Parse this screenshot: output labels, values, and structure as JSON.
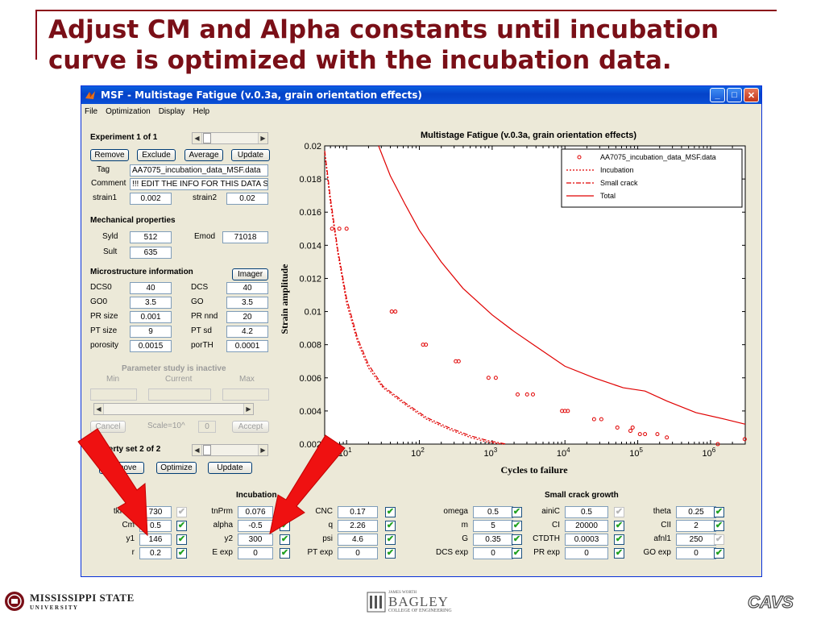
{
  "slide": {
    "title_line1": "Adjust CM and Alpha constants until incubation",
    "title_line2": "curve is optimized with the incubation data."
  },
  "window": {
    "title": "MSF - Multistage Fatigue (v.0.3a, grain orientation effects)",
    "menu": [
      "File",
      "Optimization",
      "Display",
      "Help"
    ]
  },
  "experiment": {
    "header": "Experiment 1 of 1",
    "buttons": [
      "Remove",
      "Exclude",
      "Average",
      "Update"
    ],
    "tag_label": "Tag",
    "tag_value": "AA7075_incubation_data_MSF.data",
    "comment_label": "Comment",
    "comment_value": "!!! EDIT THE INFO FOR THIS DATA SET",
    "strain1_label": "strain1",
    "strain1_value": "0.002",
    "strain2_label": "strain2",
    "strain2_value": "0.02"
  },
  "mechanical": {
    "header": "Mechanical properties",
    "syld_label": "Syld",
    "syld_value": "512",
    "emod_label": "Emod",
    "emod_value": "71018",
    "sult_label": "Sult",
    "sult_value": "635"
  },
  "microstructure": {
    "header": "Microstructure information",
    "imager_button": "Imager",
    "rows": [
      {
        "l1": "DCS0",
        "v1": "40",
        "l2": "DCS",
        "v2": "40"
      },
      {
        "l1": "GO0",
        "v1": "3.5",
        "l2": "GO",
        "v2": "3.5"
      },
      {
        "l1": "PR size",
        "v1": "0.001",
        "l2": "PR nnd",
        "v2": "20"
      },
      {
        "l1": "PT size",
        "v1": "9",
        "l2": "PT sd",
        "v2": "4.2"
      },
      {
        "l1": "porosity",
        "v1": "0.0015",
        "l2": "porTH",
        "v2": "0.0001"
      }
    ]
  },
  "parameter_study": {
    "status": "Parameter study is inactive",
    "min_label": "Min",
    "current_label": "Current",
    "max_label": "Max",
    "cancel": "Cancel",
    "scale_label": "Scale=10^",
    "scale_value": "0",
    "accept": "Accept"
  },
  "property_set": {
    "header": "Property set 2 of 2",
    "buttons": [
      "Remove",
      "Optimize",
      "Update"
    ]
  },
  "params": {
    "incubation_header": "Incubation",
    "small_crack_header": "Small crack growth",
    "rows": [
      [
        {
          "label": "tkPrm",
          "value": "730",
          "checked": false
        },
        {
          "label": "tnPrm",
          "value": "0.076",
          "checked": true
        },
        {
          "label": "CNC",
          "value": "0.17",
          "checked": true
        },
        {
          "label": "omega",
          "value": "0.5",
          "checked": true
        },
        {
          "label": "ainiC",
          "value": "0.5",
          "checked": false
        },
        {
          "label": "theta",
          "value": "0.25",
          "checked": true
        }
      ],
      [
        {
          "label": "Cm",
          "value": "0.5",
          "checked": true
        },
        {
          "label": "alpha",
          "value": "-0.5",
          "checked": true
        },
        {
          "label": "q",
          "value": "2.26",
          "checked": true
        },
        {
          "label": "m",
          "value": "5",
          "checked": true
        },
        {
          "label": "CI",
          "value": "20000",
          "checked": true
        },
        {
          "label": "CII",
          "value": "2",
          "checked": true
        }
      ],
      [
        {
          "label": "y1",
          "value": "146",
          "checked": true
        },
        {
          "label": "y2",
          "value": "300",
          "checked": true
        },
        {
          "label": "psi",
          "value": "4.6",
          "checked": true
        },
        {
          "label": "G",
          "value": "0.35",
          "checked": true
        },
        {
          "label": "CTDTH",
          "value": "0.0003",
          "checked": true
        },
        {
          "label": "afnl1",
          "value": "250",
          "checked": false
        }
      ],
      [
        {
          "label": "r",
          "value": "0.2",
          "checked": true
        },
        {
          "label": "E exp",
          "value": "0",
          "checked": true
        },
        {
          "label": "PT exp",
          "value": "0",
          "checked": true
        },
        {
          "label": "DCS exp",
          "value": "0",
          "checked": true
        },
        {
          "label": "PR exp",
          "value": "0",
          "checked": true
        },
        {
          "label": "GO exp",
          "value": "0",
          "checked": true
        }
      ]
    ]
  },
  "plot": {
    "title": "Multistage Fatigue (v.0.3a, grain orientation effects)",
    "xlabel": "Cycles to failure",
    "ylabel": "Strain amplitude",
    "yticks": [
      "0.02",
      "0.018",
      "0.016",
      "0.014",
      "0.012",
      "0.01",
      "0.008",
      "0.006",
      "0.004",
      "0.002"
    ],
    "xticks": [
      {
        "base": "10",
        "exp": "1"
      },
      {
        "base": "10",
        "exp": "2"
      },
      {
        "base": "10",
        "exp": "3"
      },
      {
        "base": "10",
        "exp": "4"
      },
      {
        "base": "10",
        "exp": "5"
      },
      {
        "base": "10",
        "exp": "6"
      }
    ],
    "legend": [
      "AA7075_incubation_data_MSF.data",
      "Incubation",
      "Small crack",
      "Total"
    ],
    "color": "#e00000"
  },
  "footer": {
    "msu_line1": "MISSISSIPPI STATE",
    "msu_line2": "U N I V E R S I T Y",
    "bagley_small": "JAMES WORTH",
    "bagley_big": "BAGLEY",
    "bagley_sub": "COLLEGE OF ENGINEERING",
    "cavs": "CAVS"
  }
}
